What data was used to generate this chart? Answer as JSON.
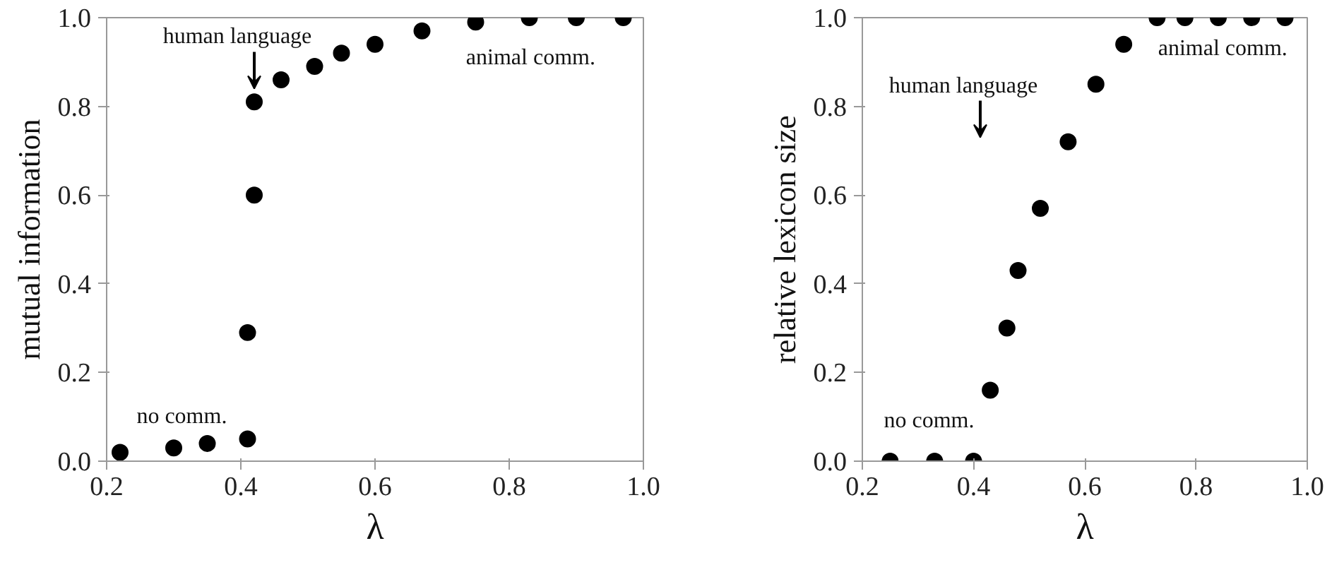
{
  "chart_data": [
    {
      "type": "scatter",
      "xlabel": "λ",
      "ylabel": "mutual information",
      "xlim": [
        0.2,
        1.0
      ],
      "ylim": [
        0.0,
        1.0
      ],
      "xticks": [
        {
          "value": 0.2,
          "label": "0.2"
        },
        {
          "value": 0.4,
          "label": "0.4"
        },
        {
          "value": 0.6,
          "label": "0.6"
        },
        {
          "value": 0.8,
          "label": "0.8"
        },
        {
          "value": 1.0,
          "label": "1.0"
        }
      ],
      "yticks": [
        {
          "value": 0.0,
          "label": "0.0"
        },
        {
          "value": 0.2,
          "label": "0.2"
        },
        {
          "value": 0.4,
          "label": "0.4"
        },
        {
          "value": 0.6,
          "label": "0.6"
        },
        {
          "value": 0.8,
          "label": "0.8"
        },
        {
          "value": 1.0,
          "label": "1.0"
        }
      ],
      "grid": false,
      "marker": "circle",
      "series": [
        {
          "color": "#000000",
          "x": [
            0.22,
            0.3,
            0.35,
            0.41,
            0.42,
            0.42,
            0.41,
            0.46,
            0.51,
            0.55,
            0.6,
            0.67,
            0.75,
            0.83,
            0.9,
            0.97
          ],
          "values": [
            0.02,
            0.03,
            0.04,
            0.05,
            0.81,
            0.6,
            0.29,
            0.86,
            0.89,
            0.92,
            0.94,
            0.97,
            0.99,
            1.0,
            1.0,
            1.0
          ]
        }
      ],
      "annotations": [
        {
          "text": "human language",
          "x": 0.42,
          "y": 0.84
        },
        "animal comm.",
        "no comm."
      ]
    },
    {
      "type": "scatter",
      "xlabel": "λ",
      "ylabel": "relative lexicon size",
      "xlim": [
        0.2,
        1.0
      ],
      "ylim": [
        0.0,
        1.0
      ],
      "xticks": [
        {
          "value": 0.2,
          "label": "0.2"
        },
        {
          "value": 0.4,
          "label": "0.4"
        },
        {
          "value": 0.6,
          "label": "0.6"
        },
        {
          "value": 0.8,
          "label": "0.8"
        },
        {
          "value": 1.0,
          "label": "1.0"
        }
      ],
      "yticks": [
        {
          "value": 0.0,
          "label": "0.0"
        },
        {
          "value": 0.2,
          "label": "0.2"
        },
        {
          "value": 0.4,
          "label": "0.4"
        },
        {
          "value": 0.6,
          "label": "0.6"
        },
        {
          "value": 0.8,
          "label": "0.8"
        },
        {
          "value": 1.0,
          "label": "1.0"
        }
      ],
      "grid": false,
      "marker": "circle",
      "series": [
        {
          "color": "#000000",
          "x": [
            0.25,
            0.33,
            0.4,
            0.43,
            0.46,
            0.48,
            0.52,
            0.57,
            0.62,
            0.67,
            0.73,
            0.78,
            0.84,
            0.9,
            0.96
          ],
          "values": [
            0.0,
            0.0,
            0.0,
            0.16,
            0.3,
            0.43,
            0.57,
            0.72,
            0.85,
            0.94,
            1.0,
            1.0,
            1.0,
            1.0,
            1.0
          ]
        }
      ],
      "annotations": [
        "human language",
        "animal comm.",
        "no comm."
      ]
    }
  ]
}
